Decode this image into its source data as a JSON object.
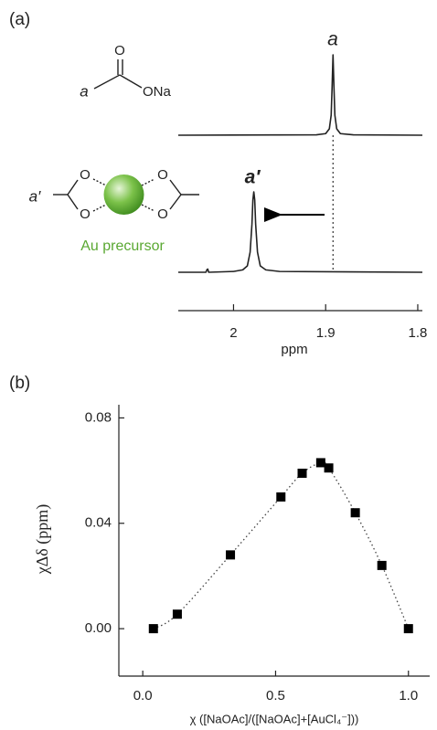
{
  "figure": {
    "panel_labels": [
      "(a)",
      "(b)"
    ]
  },
  "structures": {
    "acetate": {
      "label": "a",
      "carbonyl_o": "O",
      "ona": "ONa"
    },
    "complex": {
      "label": "a′",
      "oxygens": [
        "O",
        "O",
        "O",
        "O"
      ],
      "caption": "Au precursor"
    }
  },
  "chart_data": [
    {
      "type": "line",
      "xlabel": "ppm",
      "xlim": [
        2.06,
        1.795
      ],
      "xticks": [
        2.0,
        1.9,
        1.8
      ],
      "ylim": [
        0,
        1
      ],
      "annotations": [
        "a",
        "a′"
      ],
      "series": [
        {
          "color": "#222222",
          "x": [
            2.06,
            1.91,
            1.9,
            1.896,
            1.894,
            1.893,
            1.892,
            1.891,
            1.89,
            1.888,
            1.884,
            1.87,
            1.795
          ],
          "values": [
            0,
            0.005,
            0.02,
            0.08,
            0.25,
            0.6,
            1,
            0.6,
            0.25,
            0.08,
            0.02,
            0.005,
            0
          ]
        },
        {
          "color": "#222222",
          "x": [
            2.06,
            2.03,
            2.029,
            2.028,
            2.027,
            2.0,
            1.99,
            1.985,
            1.982,
            1.98,
            1.979,
            1.978,
            1.977,
            1.976,
            1.974,
            1.971,
            1.965,
            1.95,
            1.795
          ],
          "values": [
            0,
            0,
            0.03,
            0.04,
            0,
            0.01,
            0.03,
            0.08,
            0.25,
            0.6,
            0.9,
            1,
            0.9,
            0.6,
            0.25,
            0.08,
            0.03,
            0.01,
            0
          ]
        }
      ]
    },
    {
      "type": "scatter",
      "xlabel": "χ ([NaOAc]/([NaOAc]+[AuCl₄⁻]))",
      "ylabel": "χΔδ (ppm)",
      "xlim": [
        -0.09,
        1.08
      ],
      "ylim": [
        -0.018,
        0.085
      ],
      "xticks": [
        {
          "value": 0,
          "label": "0.0"
        },
        0.5,
        {
          "value": 1,
          "label": "1.0"
        }
      ],
      "yticks": [
        {
          "value": 0,
          "label": "0.00"
        },
        0.04,
        0.08
      ],
      "color": "#000000",
      "x": [
        0.04,
        0.13,
        0.33,
        0.52,
        0.6,
        0.67,
        0.7,
        0.8,
        0.9,
        1.0
      ],
      "values": [
        0,
        0.0055,
        0.028,
        0.05,
        0.059,
        0.063,
        0.061,
        0.044,
        0.024,
        0
      ]
    }
  ]
}
